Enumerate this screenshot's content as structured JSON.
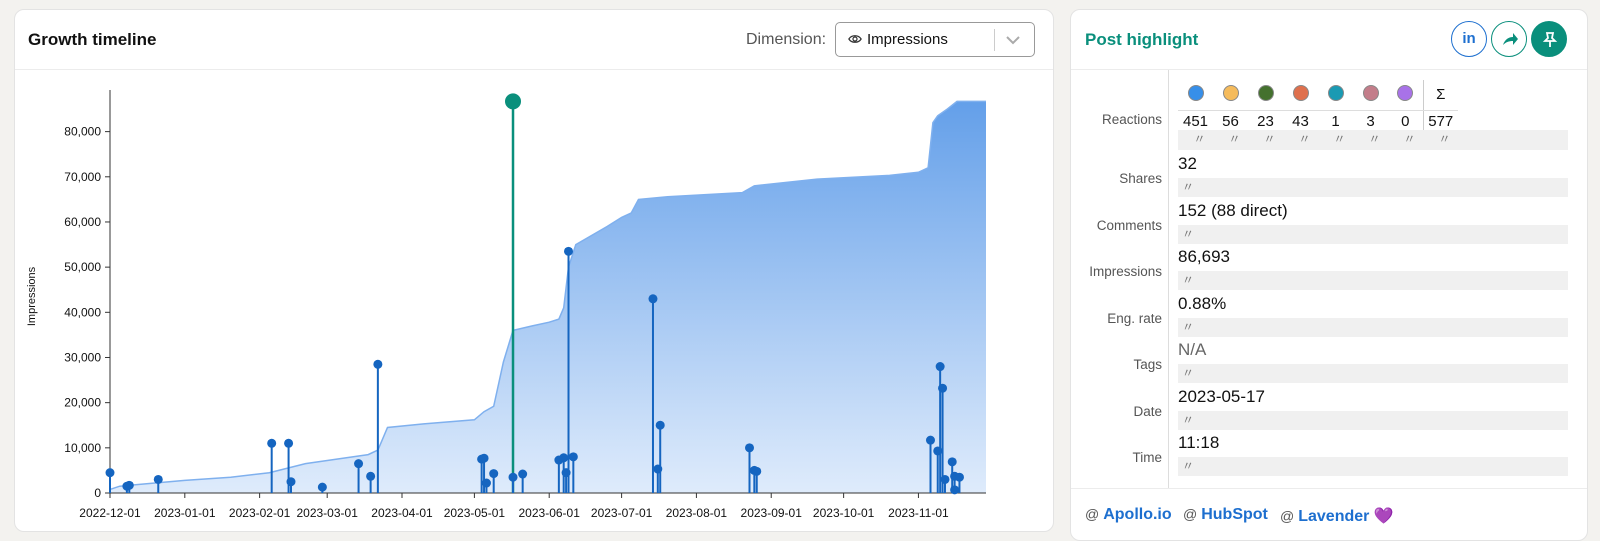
{
  "growth": {
    "title": "Growth timeline",
    "dimension_label": "Dimension:",
    "dimension_value": "Impressions",
    "dimension_icon": "eye-icon"
  },
  "chart_data": {
    "type": "area",
    "ylabel": "Impressions",
    "ylim": [
      0,
      87000
    ],
    "xlim": [
      "2022-12-01",
      "2023-11-29"
    ],
    "grid": false,
    "y_ticks": [
      0,
      10000,
      20000,
      30000,
      40000,
      50000,
      60000,
      70000,
      80000
    ],
    "y_tick_labels": [
      "0",
      "10,000",
      "20,000",
      "30,000",
      "40,000",
      "50,000",
      "60,000",
      "70,000",
      "80,000"
    ],
    "x_ticks": [
      "2022-12-01",
      "2023-01-01",
      "2023-02-01",
      "2023-03-01",
      "2023-04-01",
      "2023-05-01",
      "2023-06-01",
      "2023-07-01",
      "2023-08-01",
      "2023-09-01",
      "2023-10-01",
      "2023-11-01"
    ],
    "cumulative": {
      "color": "#7fb0ee",
      "x": [
        "2022-12-01",
        "2022-12-05",
        "2022-12-15",
        "2023-01-01",
        "2023-01-20",
        "2023-02-05",
        "2023-02-20",
        "2023-03-05",
        "2023-03-18",
        "2023-03-22",
        "2023-03-26",
        "2023-04-10",
        "2023-05-01",
        "2023-05-05",
        "2023-05-09",
        "2023-05-13",
        "2023-05-17",
        "2023-05-25",
        "2023-06-01",
        "2023-06-05",
        "2023-06-07",
        "2023-06-09",
        "2023-06-12",
        "2023-06-25",
        "2023-07-01",
        "2023-07-05",
        "2023-07-08",
        "2023-07-20",
        "2023-08-20",
        "2023-08-25",
        "2023-09-20",
        "2023-10-20",
        "2023-11-01",
        "2023-11-05",
        "2023-11-07",
        "2023-11-09",
        "2023-11-13",
        "2023-11-17",
        "2023-11-29"
      ],
      "values": [
        800,
        1500,
        2000,
        2800,
        3500,
        4500,
        6500,
        7500,
        8500,
        9500,
        14500,
        15300,
        16200,
        18000,
        19200,
        29000,
        36000,
        37000,
        37800,
        38500,
        41000,
        50000,
        55000,
        59000,
        61000,
        62000,
        65000,
        65600,
        66500,
        68000,
        69500,
        70300,
        71000,
        72000,
        82000,
        83500,
        85000,
        86700,
        86700
      ]
    },
    "posts": {
      "color": "#1565c0",
      "x": [
        "2022-12-01",
        "2022-12-08",
        "2022-12-09",
        "2022-12-21",
        "2023-02-06",
        "2023-02-13",
        "2023-02-14",
        "2023-02-27",
        "2023-03-14",
        "2023-03-19",
        "2023-03-22",
        "2023-05-04",
        "2023-05-05",
        "2023-05-06",
        "2023-05-09",
        "2023-05-17",
        "2023-05-17",
        "2023-05-21",
        "2023-06-05",
        "2023-06-07",
        "2023-06-08",
        "2023-06-09",
        "2023-06-11",
        "2023-07-14",
        "2023-07-16",
        "2023-07-17",
        "2023-08-23",
        "2023-08-25",
        "2023-08-26",
        "2023-11-06",
        "2023-11-09",
        "2023-11-10",
        "2023-11-11",
        "2023-11-12",
        "2023-11-15",
        "2023-11-16",
        "2023-11-16",
        "2023-11-18"
      ],
      "values": [
        4500,
        1500,
        1700,
        3000,
        11000,
        11000,
        2500,
        1300,
        6500,
        3700,
        28500,
        7500,
        7700,
        2200,
        4300,
        86693,
        3500,
        4200,
        7300,
        7800,
        4500,
        53500,
        8000,
        43000,
        5300,
        15000,
        10000,
        5000,
        4800,
        11700,
        9300,
        28000,
        23200,
        3000,
        6900,
        3700,
        700,
        3500
      ],
      "highlighted_date": "2023-05-17",
      "highlighted_value": 86693,
      "highlight_color": "#0a8f7c"
    }
  },
  "highlight": {
    "title": "Post highlight",
    "linkedin_label": "in",
    "labels": {
      "reactions": "Reactions",
      "shares": "Shares",
      "comments": "Comments",
      "impressions": "Impressions",
      "eng_rate": "Eng. rate",
      "tags": "Tags",
      "date": "Date",
      "time": "Time"
    },
    "reactions": [
      {
        "icon": "like-icon",
        "color": "#378fe9",
        "value": "451"
      },
      {
        "icon": "insightful-icon",
        "color": "#f5bb5c",
        "value": "56"
      },
      {
        "icon": "celebrate-icon",
        "color": "#44712e",
        "value": "23"
      },
      {
        "icon": "love-icon",
        "color": "#df704d",
        "value": "43"
      },
      {
        "icon": "funny-icon",
        "color": "#1a9ab3",
        "value": "1"
      },
      {
        "icon": "support-icon",
        "color": "#c37d8a",
        "value": "3"
      },
      {
        "icon": "curious-icon",
        "color": "#a872e8",
        "value": "0"
      },
      {
        "icon": "sigma-icon",
        "symbol": "Σ",
        "value": "577"
      }
    ],
    "ditto": "〃",
    "shares": "32",
    "comments": "152 (88 direct)",
    "impressions": "86,693",
    "eng_rate": "0.88%",
    "tags": "N/A",
    "date": "2023-05-17",
    "time": "11:18",
    "mentions": [
      {
        "at": "@",
        "name": "Apollo.io"
      },
      {
        "at": "@",
        "name": "HubSpot"
      },
      {
        "at": "@",
        "name": "Lavender 💜"
      }
    ]
  }
}
